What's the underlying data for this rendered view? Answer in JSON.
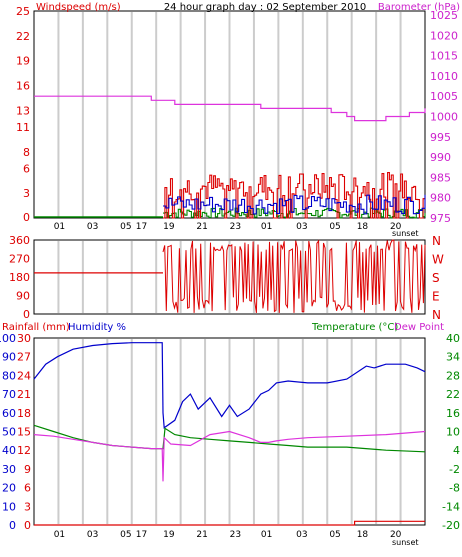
{
  "chart_data": [
    {
      "type": "line",
      "title": "24 hour graph day : 02 September 2010",
      "left_axis_label": "Windspeed (m/s)",
      "right_axis_label": "Barometer (hPa)",
      "left_ticks": [
        0,
        3,
        6,
        8,
        11,
        13,
        16,
        19,
        22,
        25
      ],
      "right_ticks": [
        975,
        980,
        985,
        990,
        995,
        1000,
        1005,
        1010,
        1015,
        1020,
        1025
      ],
      "ylim_left": [
        0,
        25
      ],
      "ylim_right": [
        975,
        1026
      ],
      "x_tick_labels": [
        "01",
        "03",
        "05",
        "17",
        "19",
        "21",
        "23",
        "01",
        "03",
        "05",
        "18",
        "20"
      ],
      "x_note": "sunset",
      "colors": {
        "gust": "#dd0000",
        "average": "#0000cc",
        "speed": "#008800",
        "barometer": "#dd33dd"
      },
      "series": [
        {
          "key": "barometer",
          "axis": "right",
          "x": [
            0,
            0.28,
            0.3,
            0.33,
            0.36,
            0.55,
            0.58,
            0.7,
            0.76,
            0.8,
            0.82,
            0.88,
            0.9,
            0.93,
            0.96,
            0.99,
            1.0
          ],
          "y": [
            1005,
            1005,
            1004,
            1004,
            1003,
            1003,
            1002,
            1002,
            1001,
            1000,
            999,
            999,
            1000,
            1000,
            1001,
            1001,
            1002
          ]
        },
        {
          "key": "gust",
          "axis": "left",
          "range": [
            0.33,
            1.0
          ],
          "min": 0,
          "max": 5.5
        },
        {
          "key": "average",
          "axis": "left",
          "range": [
            0.33,
            1.0
          ],
          "min": 0.5,
          "max": 2.8
        },
        {
          "key": "speed",
          "axis": "left",
          "range": [
            0.33,
            1.0
          ],
          "min": 0,
          "max": 1.2
        }
      ]
    },
    {
      "type": "line",
      "left_ticks": [
        0,
        90,
        180,
        270,
        360
      ],
      "right_labels": [
        "N",
        "W",
        "S",
        "E",
        "N"
      ],
      "ylim": [
        0,
        360
      ],
      "color": "#dd0000",
      "series": [
        {
          "key": "direction",
          "x": [
            0,
            0.33
          ],
          "y": [
            200,
            200
          ]
        }
      ]
    },
    {
      "type": "line",
      "left_axis_label": "Rainfall (mm)",
      "left_axis_label2": "Humidity %",
      "right_axis_label": "Temperature (°C)",
      "right_axis_label2": "Dew Point",
      "humidity_ticks": [
        0,
        10,
        20,
        30,
        40,
        50,
        60,
        70,
        80,
        90,
        100
      ],
      "rain_ticks": [
        0,
        3,
        6,
        9,
        12,
        15,
        18,
        21,
        24,
        27,
        30
      ],
      "temp_ticks": [
        -20,
        -14,
        -8,
        -2,
        4,
        10,
        16,
        22,
        28,
        34,
        40
      ],
      "ylim_left": [
        0,
        100
      ],
      "ylim_right": [
        -20,
        40
      ],
      "x_tick_labels": [
        "01",
        "03",
        "05",
        "17",
        "19",
        "21",
        "23",
        "01",
        "03",
        "05",
        "18",
        "20"
      ],
      "x_note": "sunset",
      "colors": {
        "humidity": "#0000cc",
        "rain": "#dd0000",
        "temperature": "#008800",
        "dewpoint": "#dd33dd"
      },
      "series": [
        {
          "key": "humidity",
          "x": [
            0,
            0.03,
            0.06,
            0.1,
            0.15,
            0.2,
            0.25,
            0.3,
            0.328,
            0.33,
            0.333,
            0.36,
            0.38,
            0.4,
            0.42,
            0.45,
            0.48,
            0.5,
            0.52,
            0.55,
            0.58,
            0.6,
            0.62,
            0.65,
            0.7,
            0.75,
            0.8,
            0.85,
            0.87,
            0.9,
            0.95,
            0.98,
            1.0
          ],
          "y": [
            78,
            86,
            90,
            94,
            96,
            97,
            97.5,
            97.5,
            97.5,
            60,
            52,
            56,
            66,
            70,
            62,
            68,
            58,
            64,
            58,
            62,
            70,
            72,
            76,
            77,
            76,
            76,
            78,
            85,
            84,
            86,
            86,
            84,
            82
          ]
        },
        {
          "key": "temperature",
          "x": [
            0,
            0.05,
            0.1,
            0.15,
            0.2,
            0.25,
            0.3,
            0.33,
            0.335,
            0.36,
            0.4,
            0.45,
            0.5,
            0.55,
            0.6,
            0.65,
            0.7,
            0.8,
            0.9,
            1.0
          ],
          "y": [
            12,
            10,
            8,
            6.5,
            5.5,
            5,
            4.5,
            4.5,
            11,
            9,
            8,
            7.5,
            7,
            6.5,
            6,
            5.5,
            5,
            5,
            4,
            3.5
          ]
        },
        {
          "key": "dewpoint",
          "x": [
            0,
            0.05,
            0.1,
            0.15,
            0.2,
            0.25,
            0.3,
            0.328,
            0.33,
            0.333,
            0.35,
            0.4,
            0.45,
            0.5,
            0.55,
            0.58,
            0.6,
            0.62,
            0.65,
            0.7,
            0.8,
            0.9,
            1.0
          ],
          "y": [
            9,
            8.5,
            7.5,
            6.5,
            5.5,
            5,
            4.5,
            4.5,
            -6,
            8,
            6,
            5.5,
            9,
            10,
            8,
            6.5,
            6.5,
            7,
            7.5,
            8,
            8.5,
            9,
            10
          ]
        },
        {
          "key": "rain",
          "x": [
            0,
            0.82,
            0.82,
            1.0
          ],
          "y": [
            0,
            0,
            0.6,
            0.6
          ]
        }
      ]
    }
  ]
}
